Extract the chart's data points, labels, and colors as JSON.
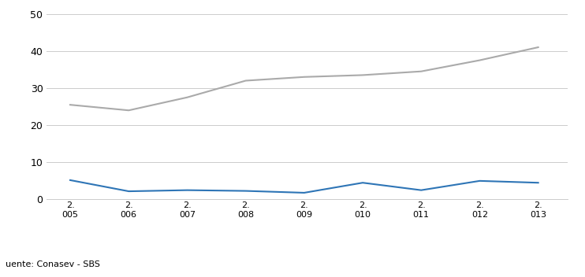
{
  "years": [
    2005,
    2006,
    2007,
    2008,
    2009,
    2010,
    2011,
    2012,
    2013
  ],
  "year_labels": [
    "2.\n005",
    "2.\n006",
    "2.\n007",
    "2.\n008",
    "2.\n009",
    "2.\n010",
    "2.\n011",
    "2.\n012",
    "2.\n013"
  ],
  "colocaciones": [
    25.5,
    24.0,
    27.5,
    32.0,
    33.0,
    33.5,
    34.5,
    37.5,
    41.0
  ],
  "bonos": [
    5.2,
    2.2,
    2.5,
    2.3,
    1.8,
    4.5,
    2.5,
    5.0,
    4.5
  ],
  "colocaciones_color": "#aaaaaa",
  "bonos_color": "#2e75b6",
  "ylim": [
    0,
    50
  ],
  "yticks": [
    0,
    10,
    20,
    30,
    40,
    50
  ],
  "source_text": "uente: Conasev - SBS",
  "background_color": "#ffffff",
  "grid_color": "#cccccc",
  "line_width": 1.5
}
